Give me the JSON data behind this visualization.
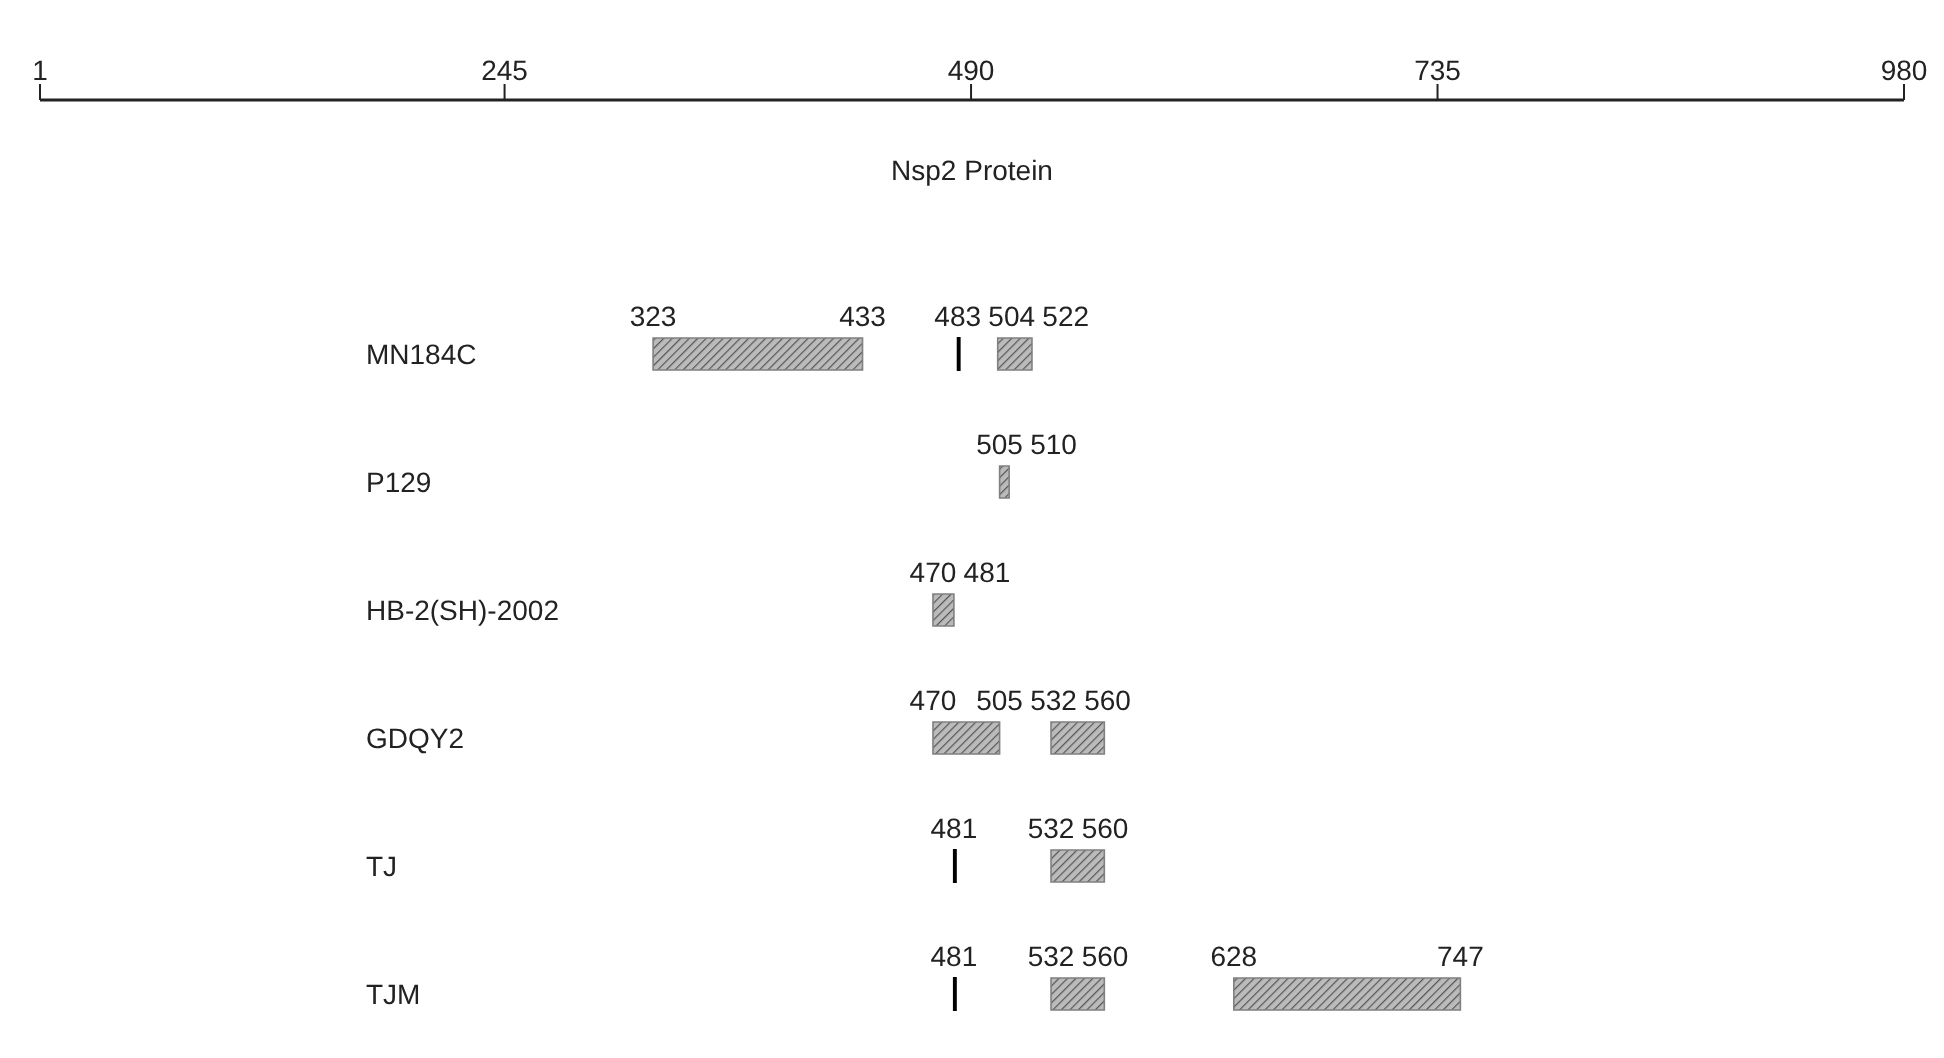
{
  "chart_data": {
    "type": "bar",
    "orientation": "horizontal",
    "xlabel": "Nsp2 Protein",
    "xlim": [
      1,
      980
    ],
    "xticks": [
      1,
      245,
      490,
      735,
      980
    ],
    "categories": [
      "MN184C",
      "P129",
      "HB-2(SH)-2002",
      "GDQY2",
      "TJ",
      "TJM"
    ],
    "series": [
      {
        "color": "#808080",
        "base": [
          323,
          505,
          470,
          470,
          null,
          null
        ],
        "values": [
          110,
          5,
          11,
          35,
          null,
          null
        ]
      },
      {
        "color": "#808080",
        "base": [
          504,
          null,
          null,
          532,
          532,
          532
        ],
        "values": [
          18,
          null,
          null,
          28,
          28,
          28
        ]
      },
      {
        "color": "#808080",
        "base": [
          null,
          null,
          null,
          null,
          null,
          628
        ],
        "values": [
          null,
          null,
          null,
          null,
          null,
          119
        ]
      },
      {
        "color": "#000000",
        "base": [
          483,
          null,
          null,
          null,
          481,
          481
        ],
        "values": [
          1,
          null,
          null,
          null,
          1,
          1
        ]
      }
    ],
    "annotations": [
      {
        "text": "323",
        "x": 323,
        "y": "MN184C"
      },
      {
        "text": "433",
        "x": 433,
        "y": "MN184C"
      },
      {
        "text": "483",
        "x": 483,
        "y": "MN184C"
      },
      {
        "text": "504",
        "x": 504,
        "y": "MN184C"
      },
      {
        "text": "522",
        "x": 522,
        "y": "MN184C"
      },
      {
        "text": "505",
        "x": 505,
        "y": "P129"
      },
      {
        "text": "510",
        "x": 510,
        "y": "P129"
      },
      {
        "text": "470",
        "x": 470,
        "y": "HB-2(SH)-2002"
      },
      {
        "text": "481",
        "x": 481,
        "y": "HB-2(SH)-2002"
      },
      {
        "text": "470",
        "x": 470,
        "y": "GDQY2"
      },
      {
        "text": "505",
        "x": 505,
        "y": "GDQY2"
      },
      {
        "text": "532",
        "x": 532,
        "y": "GDQY2"
      },
      {
        "text": "560",
        "x": 560,
        "y": "GDQY2"
      },
      {
        "text": "481",
        "x": 481,
        "y": "TJ"
      },
      {
        "text": "532",
        "x": 532,
        "y": "TJ"
      },
      {
        "text": "560",
        "x": 560,
        "y": "TJ"
      },
      {
        "text": "481",
        "x": 481,
        "y": "TJM"
      },
      {
        "text": "532",
        "x": 532,
        "y": "TJM"
      },
      {
        "text": "560",
        "x": 560,
        "y": "TJM"
      },
      {
        "text": "628",
        "x": 628,
        "y": "TJM"
      },
      {
        "text": "747",
        "x": 747,
        "y": "TJM"
      }
    ]
  }
}
